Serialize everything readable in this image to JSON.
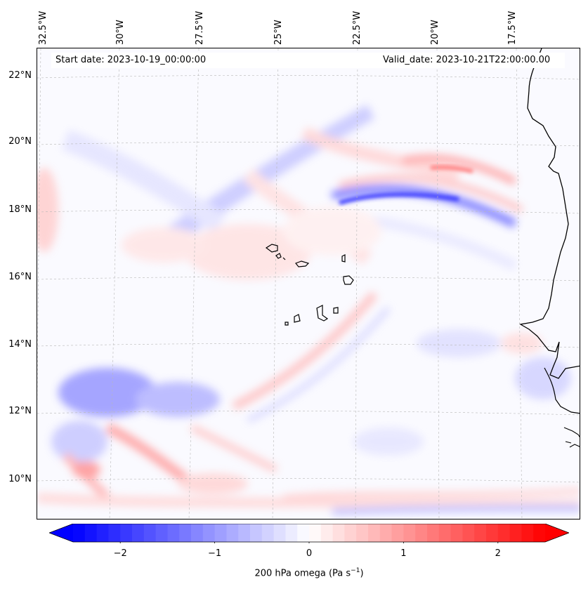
{
  "map": {
    "start_date": "Start date: 2023-10-19_00:00:00",
    "valid_date": "Valid_date: 2023-10-21T22:00:00.00",
    "lat_labels": [
      "22°N",
      "20°N",
      "18°N",
      "16°N",
      "14°N",
      "12°N",
      "10°N"
    ],
    "lon_labels": [
      "32.5°W",
      "30°W",
      "27.5°W",
      "25°W",
      "22.5°W",
      "20°W",
      "17.5°W"
    ],
    "features": [
      "coastline-africa",
      "cape-verde-islands"
    ]
  },
  "colorbar": {
    "label_main": "200 hPa omega (Pa s",
    "label_sup": "−1",
    "label_close": ")",
    "ticks": [
      {
        "value": -2,
        "label": "−2"
      },
      {
        "value": -1,
        "label": "−1"
      },
      {
        "value": 0,
        "label": "0"
      },
      {
        "value": 1,
        "label": "1"
      },
      {
        "value": 2,
        "label": "2"
      }
    ],
    "vmin": -2.5,
    "vmax": 2.5,
    "color_low": "#0000ff",
    "color_mid": "#ffffff",
    "color_high": "#ff0000"
  }
}
